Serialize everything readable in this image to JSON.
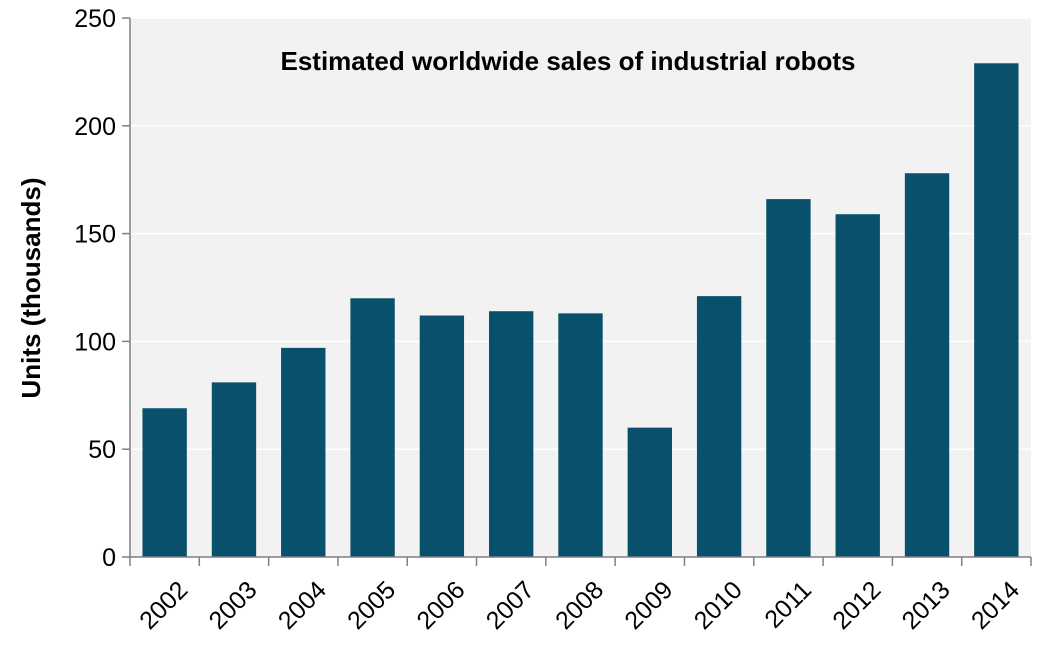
{
  "chart_data": {
    "type": "bar",
    "title": "Estimated worldwide sales of industrial robots",
    "xlabel": "",
    "ylabel": "Units (thousands)",
    "categories": [
      "2002",
      "2003",
      "2004",
      "2005",
      "2006",
      "2007",
      "2008",
      "2009",
      "2010",
      "2011",
      "2012",
      "2013",
      "2014"
    ],
    "values": [
      69,
      81,
      97,
      120,
      112,
      114,
      113,
      60,
      121,
      166,
      159,
      178,
      229
    ],
    "ylim": [
      0,
      250
    ],
    "yticks": [
      0,
      50,
      100,
      150,
      200,
      250
    ],
    "ytick_labels": [
      "0",
      "50",
      "100",
      "150",
      "200",
      "250"
    ],
    "grid": "horizontal",
    "legend": "none",
    "colors": {
      "bar": "#08506b",
      "plot_background": "#f2f2f2",
      "grid": "#ffffff",
      "axis": "#7f7f7f"
    }
  }
}
